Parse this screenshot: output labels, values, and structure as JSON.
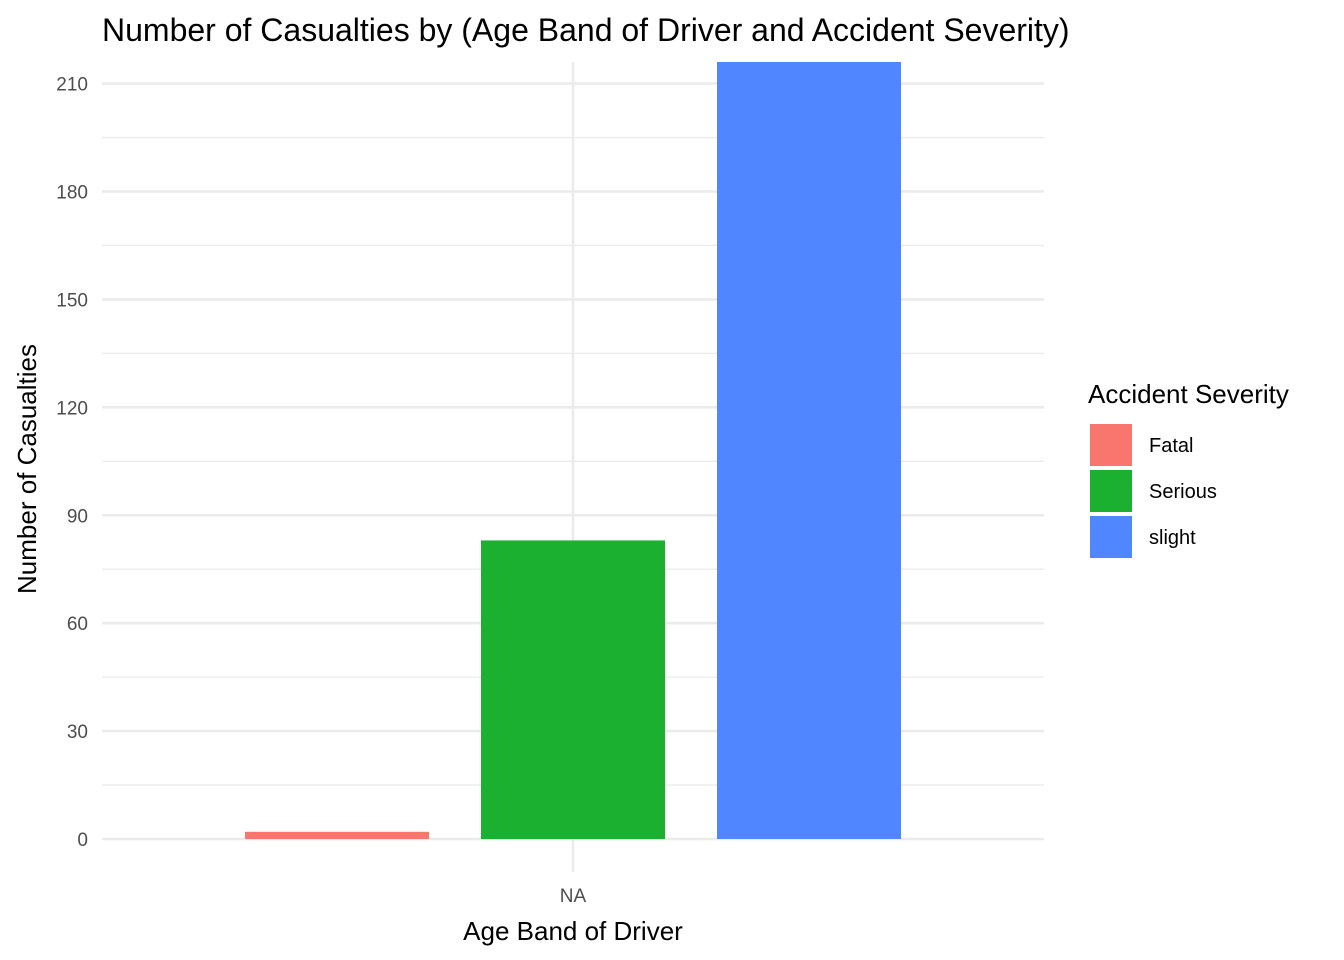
{
  "chart_data": {
    "type": "bar",
    "title": "Number of Casualties by (Age Band of Driver and Accident Severity)",
    "xlabel": "Age Band of Driver",
    "ylabel": "Number of Casualties",
    "categories": [
      "NA"
    ],
    "series": [
      {
        "name": "Fatal",
        "values": [
          2
        ],
        "color": "#F8766D"
      },
      {
        "name": "Serious",
        "values": [
          83
        ],
        "color": "#1BB02F"
      },
      {
        "name": "slight",
        "values": [
          216
        ],
        "color": "#5086FF"
      }
    ],
    "ylim": [
      0,
      216
    ],
    "yticks": [
      0,
      30,
      60,
      90,
      120,
      150,
      180,
      210
    ],
    "grid": true,
    "legend": {
      "title": "Accident Severity",
      "position": "right"
    }
  }
}
